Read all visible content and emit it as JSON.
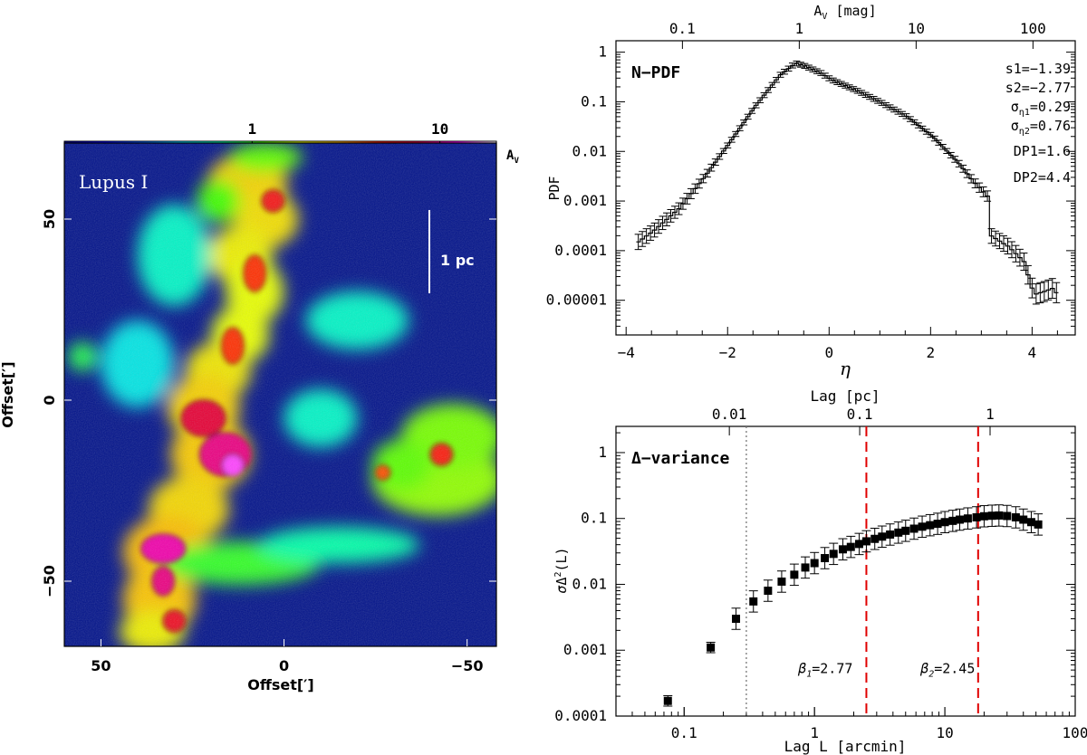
{
  "chart_data": [
    {
      "type": "heatmap",
      "title": "Lupus I",
      "scalebar_label": "1 pc",
      "colorbar": {
        "label": "A",
        "label_sub": "V",
        "ticks": [
          {
            "v": 1,
            "label": "1"
          },
          {
            "v": 10,
            "label": "10"
          }
        ],
        "range": [
          0.1,
          20
        ],
        "stops": [
          "#000090",
          "#0000ff",
          "#0060ff",
          "#00d8ff",
          "#00ffb0",
          "#40ff00",
          "#e8ff00",
          "#ffb000",
          "#ff2000",
          "#e00040",
          "#ff00ff",
          "#ffffff"
        ]
      },
      "xlabel": "Offset[′]",
      "ylabel": "Offset[′]",
      "xlim": [
        60,
        -58
      ],
      "ylim": [
        -68,
        71
      ],
      "xticks": [
        {
          "v": 50,
          "label": "50"
        },
        {
          "v": 0,
          "label": "0"
        },
        {
          "v": -50,
          "label": "−50"
        }
      ],
      "yticks": [
        {
          "v": 50,
          "label": "50"
        },
        {
          "v": 0,
          "label": "0"
        },
        {
          "v": -50,
          "label": "−50"
        }
      ],
      "blobs": [
        {
          "x": 10,
          "y": 60,
          "rx": 11,
          "ry": 8,
          "av": 2.4
        },
        {
          "x": 5,
          "y": 50,
          "rx": 9,
          "ry": 8,
          "av": 2.2
        },
        {
          "x": 12,
          "y": 40,
          "rx": 9,
          "ry": 8,
          "av": 2.0
        },
        {
          "x": 8,
          "y": 30,
          "rx": 8,
          "ry": 9,
          "av": 1.8
        },
        {
          "x": 12,
          "y": 18,
          "rx": 8,
          "ry": 8,
          "av": 1.8
        },
        {
          "x": 18,
          "y": 8,
          "rx": 9,
          "ry": 8,
          "av": 2.1
        },
        {
          "x": 22,
          "y": -2,
          "rx": 10,
          "ry": 9,
          "av": 2.4
        },
        {
          "x": 20,
          "y": -15,
          "rx": 11,
          "ry": 10,
          "av": 2.5
        },
        {
          "x": 26,
          "y": -30,
          "rx": 11,
          "ry": 9,
          "av": 2.3
        },
        {
          "x": 32,
          "y": -42,
          "rx": 12,
          "ry": 10,
          "av": 2.7
        },
        {
          "x": 34,
          "y": -55,
          "rx": 10,
          "ry": 10,
          "av": 2.6
        },
        {
          "x": 36,
          "y": -64,
          "rx": 9,
          "ry": 6,
          "av": 2.0
        },
        {
          "x": 12,
          "y": -45,
          "rx": 22,
          "ry": 6,
          "av": 1.0
        },
        {
          "x": -15,
          "y": -40,
          "rx": 22,
          "ry": 5,
          "av": 0.7
        },
        {
          "x": -42,
          "y": -22,
          "rx": 18,
          "ry": 10,
          "av": 1.4
        },
        {
          "x": -46,
          "y": -10,
          "rx": 14,
          "ry": 9,
          "av": 1.3
        },
        {
          "x": -32,
          "y": -18,
          "rx": 8,
          "ry": 7,
          "av": 1.2
        },
        {
          "x": -20,
          "y": 22,
          "rx": 14,
          "ry": 8,
          "av": 0.6
        },
        {
          "x": 30,
          "y": 40,
          "rx": 10,
          "ry": 14,
          "av": 0.6
        },
        {
          "x": 40,
          "y": 10,
          "rx": 10,
          "ry": 12,
          "av": 0.5
        },
        {
          "x": 55,
          "y": 12,
          "rx": 4,
          "ry": 4,
          "av": 0.9
        },
        {
          "x": 5,
          "y": 67,
          "rx": 10,
          "ry": 4,
          "av": 1.2
        },
        {
          "x": 18,
          "y": 55,
          "rx": 6,
          "ry": 6,
          "av": 1.1
        },
        {
          "x": -10,
          "y": -5,
          "rx": 10,
          "ry": 8,
          "av": 0.6
        },
        {
          "x": 8,
          "y": 35,
          "rx": 3,
          "ry": 5,
          "av": 4.5
        },
        {
          "x": 3,
          "y": 55,
          "rx": 3,
          "ry": 3,
          "av": 5.5
        },
        {
          "x": 14,
          "y": 15,
          "rx": 3,
          "ry": 5,
          "av": 4.5
        },
        {
          "x": 22,
          "y": -5,
          "rx": 6,
          "ry": 5,
          "av": 7
        },
        {
          "x": 16,
          "y": -15,
          "rx": 7,
          "ry": 6,
          "av": 9
        },
        {
          "x": 14,
          "y": -18,
          "rx": 3,
          "ry": 3,
          "av": 14
        },
        {
          "x": 33,
          "y": -41,
          "rx": 6,
          "ry": 4,
          "av": 10
        },
        {
          "x": 33,
          "y": -50,
          "rx": 3,
          "ry": 4,
          "av": 9
        },
        {
          "x": 30,
          "y": -61,
          "rx": 3,
          "ry": 3,
          "av": 6
        },
        {
          "x": -43,
          "y": -15,
          "rx": 3,
          "ry": 3,
          "av": 5
        },
        {
          "x": -27,
          "y": -20,
          "rx": 2,
          "ry": 2,
          "av": 4
        }
      ]
    },
    {
      "type": "line",
      "title": "N−PDF",
      "xlabel": "η",
      "ylabel": "PDF",
      "xlim": [
        -4.2,
        4.85
      ],
      "ylim": [
        2e-06,
        1.7
      ],
      "ylog": true,
      "xticks": [
        {
          "v": -4,
          "label": "−4"
        },
        {
          "v": -2,
          "label": "−2"
        },
        {
          "v": 0,
          "label": "0"
        },
        {
          "v": 2,
          "label": "2"
        },
        {
          "v": 4,
          "label": "4"
        }
      ],
      "yticks": [
        {
          "v": 1,
          "label": "1"
        },
        {
          "v": 0.1,
          "label": "0.1"
        },
        {
          "v": 0.01,
          "label": "0.01"
        },
        {
          "v": 0.001,
          "label": "0.001"
        },
        {
          "v": 0.0001,
          "label": "0.0001"
        },
        {
          "v": 1e-05,
          "label": "0.00001"
        }
      ],
      "top_axis": {
        "label": "A",
        "label_sub": "V",
        "unit": "[mag]",
        "ticks": [
          {
            "v": 0.1,
            "label": "0.1"
          },
          {
            "v": 1,
            "label": "1"
          },
          {
            "v": 10,
            "label": "10"
          },
          {
            "v": 100,
            "label": "100"
          }
        ],
        "mean_av": 1.8
      },
      "annotations": [
        "s1=−1.39",
        "s2=−2.77",
        "ση1=0.29",
        "ση2=0.76",
        "DP1=1.6",
        "DP2=4.4"
      ],
      "curve": [
        [
          -3.8,
          0.00015
        ],
        [
          -3.5,
          0.00025
        ],
        [
          -3.0,
          0.0007
        ],
        [
          -2.5,
          0.003
        ],
        [
          -2.0,
          0.015
        ],
        [
          -1.5,
          0.08
        ],
        [
          -1.0,
          0.35
        ],
        [
          -0.7,
          0.6
        ],
        [
          -0.5,
          0.52
        ],
        [
          -0.2,
          0.38
        ],
        [
          0.0,
          0.28
        ],
        [
          0.5,
          0.17
        ],
        [
          1.0,
          0.095
        ],
        [
          1.5,
          0.05
        ],
        [
          2.0,
          0.02
        ],
        [
          2.5,
          0.006
        ],
        [
          2.8,
          0.0025
        ],
        [
          3.1,
          0.0012
        ],
        [
          3.15,
          0.0002
        ],
        [
          3.5,
          0.00012
        ],
        [
          3.8,
          6e-05
        ],
        [
          4.0,
          1.3e-05
        ],
        [
          4.2,
          1.5e-05
        ],
        [
          4.4,
          1.8e-05
        ],
        [
          4.5,
          1e-05
        ]
      ]
    },
    {
      "type": "scatter",
      "title": "Δ−variance",
      "xlabel": "Lag L [arcmin]",
      "ylabel": "σΔ²(L)",
      "xlim": [
        0.03,
        100
      ],
      "ylim": [
        0.0001,
        2.5
      ],
      "xlog": true,
      "ylog": true,
      "xticks": [
        {
          "v": 0.1,
          "label": "0.1"
        },
        {
          "v": 1,
          "label": "1"
        },
        {
          "v": 10,
          "label": "10"
        },
        {
          "v": 100,
          "label": "100"
        }
      ],
      "yticks": [
        {
          "v": 1,
          "label": "1"
        },
        {
          "v": 0.1,
          "label": "0.1"
        },
        {
          "v": 0.01,
          "label": "0.01"
        },
        {
          "v": 0.001,
          "label": "0.001"
        },
        {
          "v": 0.0001,
          "label": "0.0001"
        }
      ],
      "top_axis": {
        "label": "Lag [pc]",
        "ticks": [
          {
            "v": 0.01,
            "label": "0.01"
          },
          {
            "v": 0.1,
            "label": "0.1"
          },
          {
            "v": 1,
            "label": "1"
          }
        ],
        "pc_per_arcmin": 0.045
      },
      "resolution_line": 0.3,
      "break_lines": [
        2.5,
        18
      ],
      "annotations": [
        {
          "text": "β1=2.77",
          "x": 0.75,
          "y": 0.00045
        },
        {
          "text": "β2=2.45",
          "x": 6.5,
          "y": 0.00045
        }
      ],
      "points": [
        [
          0.075,
          0.00017
        ],
        [
          0.16,
          0.0011
        ],
        [
          0.25,
          0.003
        ],
        [
          0.34,
          0.0055
        ],
        [
          0.44,
          0.008
        ],
        [
          0.56,
          0.011
        ],
        [
          0.7,
          0.014
        ],
        [
          0.85,
          0.018
        ],
        [
          1.0,
          0.021
        ],
        [
          1.2,
          0.025
        ],
        [
          1.4,
          0.029
        ],
        [
          1.65,
          0.034
        ],
        [
          1.9,
          0.037
        ],
        [
          2.2,
          0.041
        ],
        [
          2.5,
          0.045
        ],
        [
          2.9,
          0.049
        ],
        [
          3.3,
          0.053
        ],
        [
          3.8,
          0.057
        ],
        [
          4.4,
          0.061
        ],
        [
          5.0,
          0.065
        ],
        [
          5.8,
          0.07
        ],
        [
          6.7,
          0.075
        ],
        [
          7.7,
          0.079
        ],
        [
          8.8,
          0.083
        ],
        [
          10.0,
          0.088
        ],
        [
          11.5,
          0.092
        ],
        [
          13.0,
          0.096
        ],
        [
          15.0,
          0.1
        ],
        [
          17.5,
          0.104
        ],
        [
          20.0,
          0.108
        ],
        [
          23.0,
          0.11
        ],
        [
          26.0,
          0.111
        ],
        [
          30.0,
          0.109
        ],
        [
          35.0,
          0.104
        ],
        [
          40.0,
          0.096
        ],
        [
          46.0,
          0.088
        ],
        [
          52.0,
          0.081
        ]
      ]
    }
  ]
}
